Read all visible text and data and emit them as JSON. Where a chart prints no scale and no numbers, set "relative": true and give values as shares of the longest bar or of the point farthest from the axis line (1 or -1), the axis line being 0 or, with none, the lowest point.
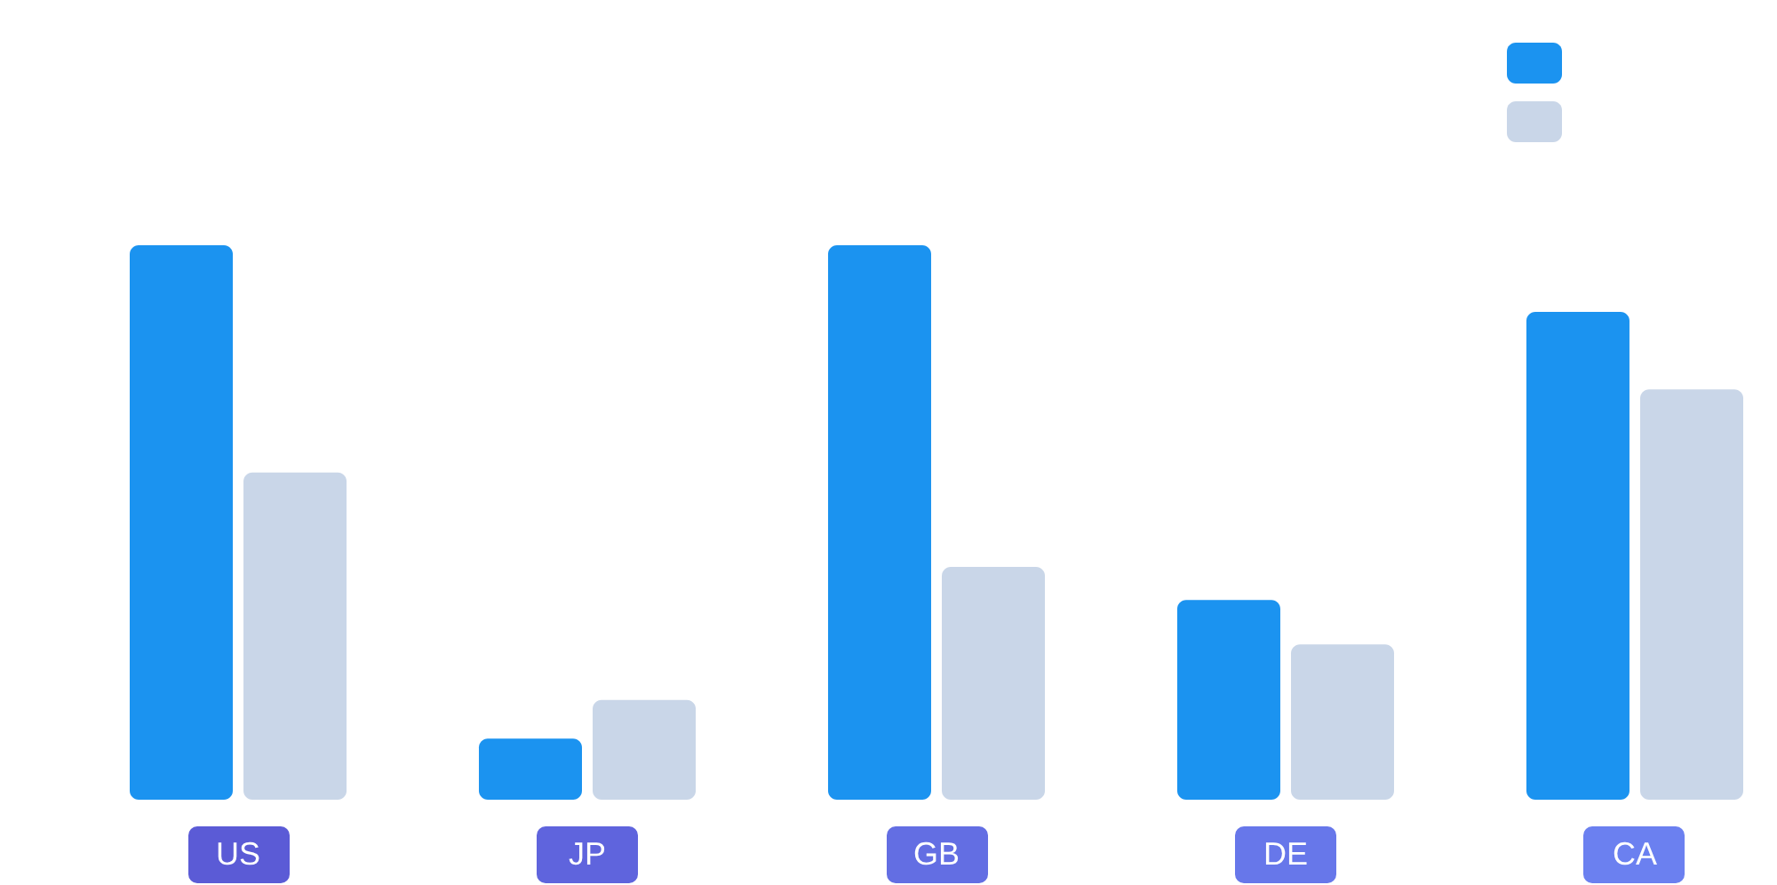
{
  "chart_data": {
    "type": "bar",
    "relative": true,
    "categories": [
      "US",
      "JP",
      "GB",
      "DE",
      "CA"
    ],
    "series": [
      {
        "color": "#1b93f0",
        "values": [
          1,
          0.11,
          1,
          0.36,
          0.88
        ]
      },
      {
        "color": "#c9d6e8",
        "values": [
          0.59,
          0.18,
          0.42,
          0.28,
          0.74
        ]
      }
    ]
  }
}
